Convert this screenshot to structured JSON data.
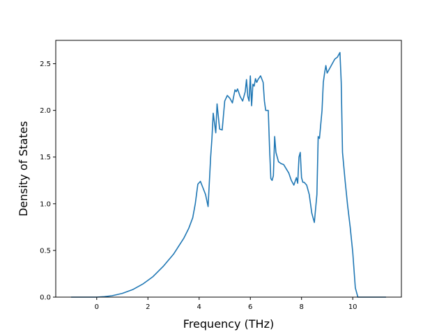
{
  "chart_data": {
    "type": "line",
    "title": "",
    "xlabel": "Frequency (THz)",
    "ylabel": "Density of States",
    "xlim": [
      -1.6,
      11.9
    ],
    "ylim": [
      0,
      2.75
    ],
    "grid": false,
    "legend": "none",
    "x_ticks": [
      0,
      2,
      4,
      6,
      8,
      10
    ],
    "y_ticks": [
      0.0,
      0.5,
      1.0,
      1.5,
      2.0,
      2.5
    ],
    "x_tick_labels": [
      "0",
      "2",
      "4",
      "6",
      "8",
      "10"
    ],
    "y_tick_labels": [
      "0.0",
      "0.5",
      "1.0",
      "1.5",
      "2.0",
      "2.5"
    ],
    "series": [
      {
        "color": "#1f77b4",
        "x": [
          -1.0,
          0.0,
          0.3,
          0.6,
          1.0,
          1.4,
          1.8,
          2.2,
          2.6,
          3.0,
          3.4,
          3.6,
          3.75,
          3.85,
          3.95,
          4.05,
          4.15,
          4.25,
          4.35,
          4.45,
          4.5,
          4.55,
          4.65,
          4.7,
          4.8,
          4.9,
          5.0,
          5.1,
          5.2,
          5.3,
          5.4,
          5.45,
          5.5,
          5.6,
          5.7,
          5.8,
          5.85,
          5.9,
          5.95,
          6.0,
          6.05,
          6.1,
          6.15,
          6.2,
          6.25,
          6.3,
          6.35,
          6.4,
          6.5,
          6.55,
          6.6,
          6.7,
          6.75,
          6.8,
          6.85,
          6.9,
          6.95,
          7.0,
          7.05,
          7.1,
          7.2,
          7.3,
          7.5,
          7.6,
          7.7,
          7.8,
          7.85,
          7.9,
          7.95,
          8.0,
          8.05,
          8.1,
          8.2,
          8.3,
          8.4,
          8.5,
          8.6,
          8.65,
          8.7,
          8.8,
          8.85,
          8.9,
          8.95,
          9.0,
          9.1,
          9.2,
          9.3,
          9.4,
          9.5,
          9.55,
          9.6,
          9.7,
          9.8,
          9.9,
          10.0,
          10.1,
          10.2,
          10.3,
          10.4,
          11.3
        ],
        "y": [
          0.0,
          0.0,
          0.005,
          0.015,
          0.04,
          0.08,
          0.14,
          0.22,
          0.33,
          0.46,
          0.63,
          0.74,
          0.85,
          1.0,
          1.21,
          1.24,
          1.17,
          1.1,
          0.97,
          1.5,
          1.7,
          1.97,
          1.76,
          2.07,
          1.8,
          1.79,
          2.1,
          2.16,
          2.13,
          2.08,
          2.22,
          2.2,
          2.23,
          2.15,
          2.1,
          2.2,
          2.33,
          2.15,
          2.1,
          2.37,
          2.05,
          2.28,
          2.26,
          2.34,
          2.3,
          2.33,
          2.35,
          2.37,
          2.3,
          2.1,
          2.0,
          2.0,
          1.6,
          1.27,
          1.25,
          1.3,
          1.72,
          1.55,
          1.5,
          1.45,
          1.43,
          1.42,
          1.33,
          1.25,
          1.2,
          1.28,
          1.22,
          1.5,
          1.55,
          1.28,
          1.23,
          1.23,
          1.2,
          1.1,
          0.9,
          0.8,
          1.1,
          1.72,
          1.7,
          2.0,
          2.3,
          2.4,
          2.48,
          2.4,
          2.45,
          2.5,
          2.55,
          2.57,
          2.62,
          2.3,
          1.55,
          1.25,
          0.98,
          0.75,
          0.48,
          0.1,
          0.0,
          0.0,
          0.0,
          0.0
        ]
      }
    ]
  }
}
